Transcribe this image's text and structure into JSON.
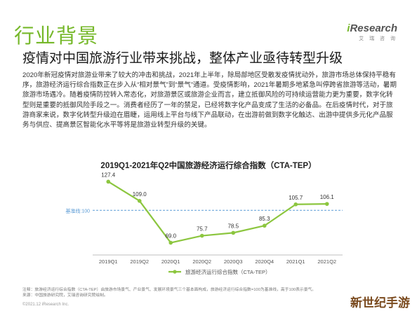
{
  "header": {
    "section_title": "行业背景",
    "brand_i": "i",
    "brand_rest": "Research",
    "brand_cn": "艾 瑞 咨 询"
  },
  "headline": "疫情对中国旅游行业带来挑战，整体产业亟待转型升级",
  "body_text": "2020年新冠疫情对旅游业带来了较大的冲击和挑战，2021年上半年，除局部地区受散发疫情扰动外，旅游市场总体保持平稳有序，旅游经济运行综合指数正在步入从“相对景气”到“景气”通道。受疫情影响，2021年暑期多地紧急叫停跨省旅游等活动，暑期旅游市场遇冷。随着疫情防控转入常态化，对旅游景区或旅游企业而言，建立抵御风险的可持续运营能力更为重要，数字化转型则是重要的抵御风险手段之一。消费者经历了一年的禁足，已经将数字化产品变成了生活的必备品。在后疫情时代，对于旅游商家来说，数字化转型升级迫在眉睫，运用线上平台与线下产品联动，在出游前做到数字化触达、出游中提供多元化产品服务与供应、提高景区智能化水平等将是旅游业转型升级的关键。",
  "chart_data": {
    "type": "line",
    "title": "2019Q1-2021年Q2中国旅游经济运行综合指数（CTA-TEP）",
    "categories": [
      "2019Q1",
      "2019Q2",
      "2020Q1",
      "2020Q2",
      "2020Q3",
      "2020Q4",
      "2021Q1",
      "2021Q2"
    ],
    "series": [
      {
        "name": "旅游经济运行综合指数（CTA-TEP）",
        "values": [
          127.4,
          109.0,
          69.0,
          75.7,
          78.5,
          85.3,
          105.7,
          106.1
        ]
      }
    ],
    "value_labels": [
      "127.4",
      "109.0",
      "69.0",
      "75.7",
      "78.5",
      "85.3",
      "105.7",
      "106.1"
    ],
    "baseline": {
      "label": "基准线:100",
      "value": 100
    },
    "ylim": [
      60,
      135
    ],
    "grid": false,
    "legend_position": "bottom-center",
    "colors": {
      "line": "#8cc63f",
      "baseline": "#5b9bd5",
      "axis": "#bfbfbf"
    }
  },
  "notes": {
    "note": "注释：旅游经济运行综合指数（CTA-TEP）由旅游市场景气、产业景气、发展环境景气三个基本面构成，旅游经济运行综合指数=100为基准线，高于100表示景气。",
    "source": "来源：中国旅游研究院，艾瑞咨询研究院绘制。"
  },
  "footer": {
    "copyright": "©2021.12 iResearch Inc.",
    "watermark": "新世纪手游"
  }
}
